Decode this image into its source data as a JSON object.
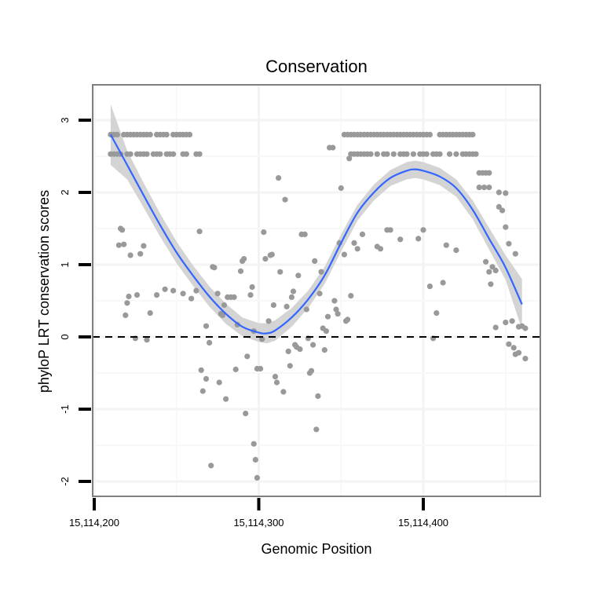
{
  "chart_data": {
    "type": "scatter",
    "title": "Conservation",
    "xlabel": "Genomic Position",
    "ylabel": "phyloP LRT conservation scores",
    "xlim": [
      15114195,
      15114467
    ],
    "ylim": [
      -2.2,
      3.5
    ],
    "x_ticks": [
      15114200,
      15114300,
      15114400
    ],
    "x_tick_labels": [
      "15,114,200",
      "15,114,300",
      "15,114,400"
    ],
    "y_ticks": [
      -2,
      -1,
      0,
      1,
      2,
      3
    ],
    "y_tick_labels": [
      "-2",
      "-1",
      "0",
      "1",
      "2",
      "3"
    ],
    "reference_line": {
      "y": 0,
      "style": "dashed"
    },
    "point_color": "#999999",
    "smooth_color": "#3366ff",
    "band_color": "#d4d4d4",
    "grid": true,
    "points": [
      [
        15114210,
        2.8
      ],
      [
        15114212,
        2.8
      ],
      [
        15114214,
        2.8
      ],
      [
        15114218,
        2.8
      ],
      [
        15114220,
        2.8
      ],
      [
        15114222,
        2.8
      ],
      [
        15114224,
        2.8
      ],
      [
        15114226,
        2.8
      ],
      [
        15114228,
        2.8
      ],
      [
        15114230,
        2.8
      ],
      [
        15114232,
        2.8
      ],
      [
        15114234,
        2.8
      ],
      [
        15114238,
        2.8
      ],
      [
        15114240,
        2.8
      ],
      [
        15114242,
        2.8
      ],
      [
        15114244,
        2.8
      ],
      [
        15114248,
        2.8
      ],
      [
        15114250,
        2.8
      ],
      [
        15114252,
        2.8
      ],
      [
        15114254,
        2.8
      ],
      [
        15114256,
        2.8
      ],
      [
        15114258,
        2.8
      ],
      [
        15114210,
        2.53
      ],
      [
        15114212,
        2.53
      ],
      [
        15114214,
        2.53
      ],
      [
        15114216,
        2.53
      ],
      [
        15114220,
        2.53
      ],
      [
        15114222,
        2.53
      ],
      [
        15114226,
        2.53
      ],
      [
        15114228,
        2.53
      ],
      [
        15114230,
        2.53
      ],
      [
        15114232,
        2.53
      ],
      [
        15114236,
        2.53
      ],
      [
        15114238,
        2.53
      ],
      [
        15114240,
        2.53
      ],
      [
        15114244,
        2.53
      ],
      [
        15114246,
        2.53
      ],
      [
        15114248,
        2.53
      ],
      [
        15114254,
        2.53
      ],
      [
        15114256,
        2.53
      ],
      [
        15114262,
        2.53
      ],
      [
        15114264,
        2.53
      ],
      [
        15114216,
        1.5
      ],
      [
        15114217,
        1.48
      ],
      [
        15114215,
        1.27
      ],
      [
        15114218,
        1.28
      ],
      [
        15114222,
        1.13
      ],
      [
        15114228,
        1.15
      ],
      [
        15114230,
        1.26
      ],
      [
        15114264,
        1.46
      ],
      [
        15114220,
        0.47
      ],
      [
        15114221,
        0.56
      ],
      [
        15114219,
        0.3
      ],
      [
        15114226,
        0.58
      ],
      [
        15114234,
        0.33
      ],
      [
        15114238,
        0.58
      ],
      [
        15114243,
        0.66
      ],
      [
        15114248,
        0.64
      ],
      [
        15114254,
        0.6
      ],
      [
        15114259,
        0.53
      ],
      [
        15114262,
        0.64
      ],
      [
        15114225,
        -0.02
      ],
      [
        15114232,
        -0.04
      ],
      [
        15114265,
        -0.46
      ],
      [
        15114266,
        -0.75
      ],
      [
        15114268,
        -0.58
      ],
      [
        15114268,
        0.15
      ],
      [
        15114270,
        -0.08
      ],
      [
        15114271,
        -1.78
      ],
      [
        15114272,
        0.97
      ],
      [
        15114273,
        0.96
      ],
      [
        15114275,
        0.6
      ],
      [
        15114276,
        -0.63
      ],
      [
        15114277,
        0.32
      ],
      [
        15114278,
        0.3
      ],
      [
        15114279,
        0.44
      ],
      [
        15114280,
        -0.86
      ],
      [
        15114281,
        0.55
      ],
      [
        15114283,
        0.55
      ],
      [
        15114285,
        0.55
      ],
      [
        15114286,
        -0.45
      ],
      [
        15114287,
        0.17
      ],
      [
        15114289,
        0.91
      ],
      [
        15114290,
        1.05
      ],
      [
        15114291,
        1.08
      ],
      [
        15114292,
        -1.06
      ],
      [
        15114293,
        -0.27
      ],
      [
        15114295,
        0.58
      ],
      [
        15114296,
        0.69
      ],
      [
        15114297,
        -1.48
      ],
      [
        15114297,
        0.08
      ],
      [
        15114298,
        -1.7
      ],
      [
        15114299,
        -1.95
      ],
      [
        15114299,
        -0.44
      ],
      [
        15114301,
        -0.44
      ],
      [
        15114302,
        -0.03
      ],
      [
        15114303,
        1.45
      ],
      [
        15114304,
        1.08
      ],
      [
        15114306,
        0.22
      ],
      [
        15114307,
        1.13
      ],
      [
        15114308,
        1.14
      ],
      [
        15114309,
        0.44
      ],
      [
        15114310,
        -0.55
      ],
      [
        15114311,
        -0.63
      ],
      [
        15114312,
        2.2
      ],
      [
        15114313,
        0.9
      ],
      [
        15114315,
        -0.76
      ],
      [
        15114316,
        1.9
      ],
      [
        15114317,
        0.42
      ],
      [
        15114318,
        -0.2
      ],
      [
        15114319,
        -0.4
      ],
      [
        15114320,
        0.55
      ],
      [
        15114321,
        0.63
      ],
      [
        15114322,
        -0.11
      ],
      [
        15114323,
        -0.14
      ],
      [
        15114324,
        0.85
      ],
      [
        15114325,
        -0.17
      ],
      [
        15114326,
        1.42
      ],
      [
        15114328,
        1.42
      ],
      [
        15114329,
        0.38
      ],
      [
        15114330,
        -0.02
      ],
      [
        15114331,
        -0.5
      ],
      [
        15114332,
        -0.47
      ],
      [
        15114333,
        -0.11
      ],
      [
        15114334,
        1.05
      ],
      [
        15114335,
        -1.28
      ],
      [
        15114336,
        -0.82
      ],
      [
        15114337,
        0.6
      ],
      [
        15114338,
        0.9
      ],
      [
        15114339,
        0.12
      ],
      [
        15114340,
        -0.18
      ],
      [
        15114341,
        0.08
      ],
      [
        15114342,
        0.28
      ],
      [
        15114343,
        2.62
      ],
      [
        15114345,
        2.62
      ],
      [
        15114346,
        0.5
      ],
      [
        15114347,
        0.38
      ],
      [
        15114348,
        0.32
      ],
      [
        15114349,
        1.3
      ],
      [
        15114350,
        2.06
      ],
      [
        15114352,
        1.14
      ],
      [
        15114353,
        0.22
      ],
      [
        15114354,
        0.24
      ],
      [
        15114355,
        2.47
      ],
      [
        15114356,
        0.57
      ],
      [
        15114358,
        1.3
      ],
      [
        15114360,
        1.22
      ],
      [
        15114363,
        1.42
      ],
      [
        15114372,
        1.25
      ],
      [
        15114374,
        1.22
      ],
      [
        15114378,
        1.48
      ],
      [
        15114380,
        1.48
      ],
      [
        15114386,
        1.35
      ],
      [
        15114397,
        1.36
      ],
      [
        15114400,
        1.48
      ],
      [
        15114404,
        0.7
      ],
      [
        15114406,
        -0.02
      ],
      [
        15114408,
        0.33
      ],
      [
        15114412,
        0.75
      ],
      [
        15114414,
        1.27
      ],
      [
        15114420,
        1.2
      ],
      [
        15114352,
        2.8
      ],
      [
        15114354,
        2.8
      ],
      [
        15114356,
        2.8
      ],
      [
        15114358,
        2.8
      ],
      [
        15114360,
        2.8
      ],
      [
        15114362,
        2.8
      ],
      [
        15114364,
        2.8
      ],
      [
        15114366,
        2.8
      ],
      [
        15114368,
        2.8
      ],
      [
        15114370,
        2.8
      ],
      [
        15114372,
        2.8
      ],
      [
        15114374,
        2.8
      ],
      [
        15114376,
        2.8
      ],
      [
        15114378,
        2.8
      ],
      [
        15114380,
        2.8
      ],
      [
        15114382,
        2.8
      ],
      [
        15114384,
        2.8
      ],
      [
        15114386,
        2.8
      ],
      [
        15114388,
        2.8
      ],
      [
        15114390,
        2.8
      ],
      [
        15114392,
        2.8
      ],
      [
        15114394,
        2.8
      ],
      [
        15114396,
        2.8
      ],
      [
        15114398,
        2.8
      ],
      [
        15114400,
        2.8
      ],
      [
        15114402,
        2.8
      ],
      [
        15114404,
        2.8
      ],
      [
        15114410,
        2.8
      ],
      [
        15114412,
        2.8
      ],
      [
        15114414,
        2.8
      ],
      [
        15114416,
        2.8
      ],
      [
        15114418,
        2.8
      ],
      [
        15114420,
        2.8
      ],
      [
        15114422,
        2.8
      ],
      [
        15114424,
        2.8
      ],
      [
        15114426,
        2.8
      ],
      [
        15114428,
        2.8
      ],
      [
        15114430,
        2.8
      ],
      [
        15114356,
        2.53
      ],
      [
        15114358,
        2.53
      ],
      [
        15114360,
        2.53
      ],
      [
        15114362,
        2.53
      ],
      [
        15114364,
        2.53
      ],
      [
        15114366,
        2.53
      ],
      [
        15114368,
        2.53
      ],
      [
        15114372,
        2.53
      ],
      [
        15114376,
        2.53
      ],
      [
        15114378,
        2.53
      ],
      [
        15114382,
        2.53
      ],
      [
        15114386,
        2.53
      ],
      [
        15114388,
        2.53
      ],
      [
        15114390,
        2.53
      ],
      [
        15114394,
        2.53
      ],
      [
        15114398,
        2.53
      ],
      [
        15114400,
        2.53
      ],
      [
        15114402,
        2.53
      ],
      [
        15114406,
        2.53
      ],
      [
        15114408,
        2.53
      ],
      [
        15114410,
        2.53
      ],
      [
        15114416,
        2.53
      ],
      [
        15114420,
        2.53
      ],
      [
        15114424,
        2.53
      ],
      [
        15114426,
        2.53
      ],
      [
        15114428,
        2.53
      ],
      [
        15114430,
        2.53
      ],
      [
        15114432,
        2.53
      ],
      [
        15114434,
        2.27
      ],
      [
        15114436,
        2.27
      ],
      [
        15114438,
        2.27
      ],
      [
        15114440,
        2.27
      ],
      [
        15114434,
        2.07
      ],
      [
        15114437,
        2.07
      ],
      [
        15114440,
        2.07
      ],
      [
        15114446,
        2.0
      ],
      [
        15114450,
        1.99
      ],
      [
        15114446,
        1.8
      ],
      [
        15114448,
        1.75
      ],
      [
        15114450,
        1.52
      ],
      [
        15114452,
        1.29
      ],
      [
        15114438,
        1.04
      ],
      [
        15114440,
        0.9
      ],
      [
        15114442,
        0.97
      ],
      [
        15114444,
        0.92
      ],
      [
        15114441,
        0.73
      ],
      [
        15114456,
        1.15
      ],
      [
        15114454,
        0.22
      ],
      [
        15114450,
        0.2
      ],
      [
        15114458,
        0.14
      ],
      [
        15114460,
        0.15
      ],
      [
        15114462,
        0.12
      ],
      [
        15114444,
        0.13
      ],
      [
        15114452,
        -0.1
      ],
      [
        15114455,
        -0.15
      ],
      [
        15114456,
        -0.24
      ],
      [
        15114458,
        -0.22
      ],
      [
        15114462,
        -0.3
      ]
    ],
    "smooth": {
      "x": [
        15114210,
        15114220,
        15114230,
        15114240,
        15114250,
        15114260,
        15114270,
        15114280,
        15114290,
        15114300,
        15114305,
        15114310,
        15114320,
        15114330,
        15114340,
        15114350,
        15114360,
        15114370,
        15114380,
        15114390,
        15114395,
        15114400,
        15114410,
        15114420,
        15114430,
        15114440,
        15114450,
        15114460
      ],
      "y": [
        2.8,
        2.38,
        1.96,
        1.55,
        1.17,
        0.85,
        0.56,
        0.32,
        0.14,
        0.06,
        0.05,
        0.09,
        0.27,
        0.52,
        0.85,
        1.3,
        1.72,
        2.0,
        2.2,
        2.3,
        2.32,
        2.3,
        2.22,
        2.06,
        1.76,
        1.36,
        0.96,
        0.45
      ],
      "se": [
        0.42,
        0.2,
        0.17,
        0.16,
        0.15,
        0.14,
        0.14,
        0.14,
        0.13,
        0.13,
        0.14,
        0.14,
        0.13,
        0.12,
        0.12,
        0.12,
        0.11,
        0.11,
        0.11,
        0.12,
        0.12,
        0.12,
        0.12,
        0.12,
        0.13,
        0.15,
        0.17,
        0.35
      ]
    }
  }
}
